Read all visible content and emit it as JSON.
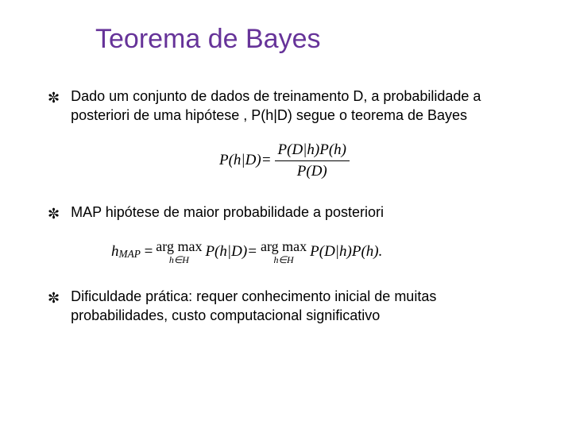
{
  "title": "Teorema de Bayes",
  "bullets": {
    "b1": "Dado um conjunto de dados de treinamento D,  a probabilidade a posteriori de uma hipótese , P(h|D) segue o teorema de Bayes",
    "b2": "MAP hipótese de maior probabilidade a posteriori",
    "b3": "Dificuldade prática: requer conhecimento inicial de muitas probabilidades, custo computacional significativo"
  },
  "formulas": {
    "bayes": {
      "lhs": "P(h|D)=",
      "num": "P(D|h)P(h)",
      "den": "P(D)"
    },
    "map": {
      "lhs_sub": "MAP",
      "lhs_base": "h",
      "argmax_top": "arg max",
      "argmax_bot": "h∈H",
      "mid": "P(h|D)=",
      "rhs": "P(D|h)P(h)."
    }
  },
  "style": {
    "title_color": "#663399",
    "text_color": "#000000",
    "background": "#ffffff",
    "title_fontsize": 34,
    "body_fontsize": 18
  }
}
